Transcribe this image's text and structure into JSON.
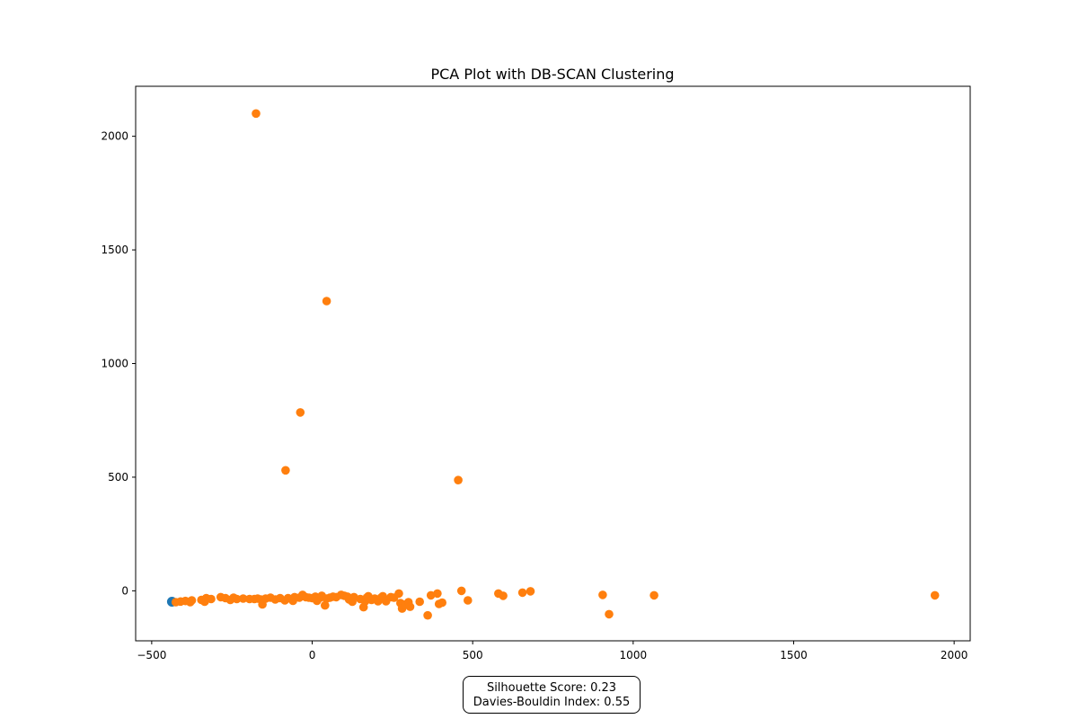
{
  "chart_data": {
    "type": "scatter",
    "title": "PCA Plot with DB-SCAN Clustering",
    "xlabel": "",
    "ylabel": "",
    "xlim": [
      -550,
      2050
    ],
    "ylim": [
      -220,
      2220
    ],
    "xticks": [
      -500,
      0,
      500,
      1000,
      1500,
      2000
    ],
    "yticks": [
      0,
      500,
      1000,
      1500,
      2000
    ],
    "grid": false,
    "legend": "none",
    "series": [
      {
        "color": "#1f77b4",
        "points": [
          [
            -437,
            -48
          ]
        ]
      },
      {
        "color": "#ff7f0e",
        "points": [
          [
            -175,
            2100
          ],
          [
            45,
            1275
          ],
          [
            -37,
            785
          ],
          [
            -83,
            530
          ],
          [
            455,
            487
          ],
          [
            -425,
            -50
          ],
          [
            -410,
            -47
          ],
          [
            -395,
            -45
          ],
          [
            -380,
            -50
          ],
          [
            -375,
            -42
          ],
          [
            -345,
            -40
          ],
          [
            -335,
            -48
          ],
          [
            -330,
            -32
          ],
          [
            -315,
            -36
          ],
          [
            -285,
            -28
          ],
          [
            -270,
            -32
          ],
          [
            -255,
            -40
          ],
          [
            -245,
            -30
          ],
          [
            -235,
            -36
          ],
          [
            -215,
            -34
          ],
          [
            -195,
            -36
          ],
          [
            -180,
            -36
          ],
          [
            -170,
            -34
          ],
          [
            -160,
            -38
          ],
          [
            -155,
            -60
          ],
          [
            -145,
            -34
          ],
          [
            -130,
            -30
          ],
          [
            -115,
            -38
          ],
          [
            -100,
            -32
          ],
          [
            -85,
            -42
          ],
          [
            -75,
            -32
          ],
          [
            -60,
            -44
          ],
          [
            -55,
            -28
          ],
          [
            -40,
            -30
          ],
          [
            -30,
            -18
          ],
          [
            -20,
            -28
          ],
          [
            -10,
            -30
          ],
          [
            0,
            -32
          ],
          [
            10,
            -26
          ],
          [
            15,
            -44
          ],
          [
            25,
            -30
          ],
          [
            30,
            -22
          ],
          [
            40,
            -64
          ],
          [
            45,
            -34
          ],
          [
            55,
            -30
          ],
          [
            65,
            -26
          ],
          [
            75,
            -28
          ],
          [
            90,
            -18
          ],
          [
            100,
            -22
          ],
          [
            110,
            -26
          ],
          [
            115,
            -38
          ],
          [
            125,
            -48
          ],
          [
            130,
            -28
          ],
          [
            150,
            -36
          ],
          [
            160,
            -72
          ],
          [
            165,
            -46
          ],
          [
            170,
            -30
          ],
          [
            175,
            -24
          ],
          [
            185,
            -40
          ],
          [
            195,
            -34
          ],
          [
            205,
            -46
          ],
          [
            215,
            -30
          ],
          [
            220,
            -24
          ],
          [
            230,
            -46
          ],
          [
            245,
            -28
          ],
          [
            255,
            -30
          ],
          [
            270,
            -12
          ],
          [
            275,
            -54
          ],
          [
            280,
            -78
          ],
          [
            290,
            -60
          ],
          [
            300,
            -50
          ],
          [
            305,
            -70
          ],
          [
            335,
            -48
          ],
          [
            360,
            -108
          ],
          [
            370,
            -20
          ],
          [
            390,
            -12
          ],
          [
            395,
            -58
          ],
          [
            405,
            -52
          ],
          [
            465,
            0
          ],
          [
            485,
            -42
          ],
          [
            580,
            -12
          ],
          [
            595,
            -22
          ],
          [
            655,
            -8
          ],
          [
            680,
            -2
          ],
          [
            905,
            -18
          ],
          [
            925,
            -103
          ],
          [
            1065,
            -20
          ],
          [
            1940,
            -20
          ]
        ]
      }
    ]
  },
  "metrics": {
    "line1": "Silhouette Score: 0.23",
    "line2": "Davies-Bouldin Index: 0.55"
  }
}
